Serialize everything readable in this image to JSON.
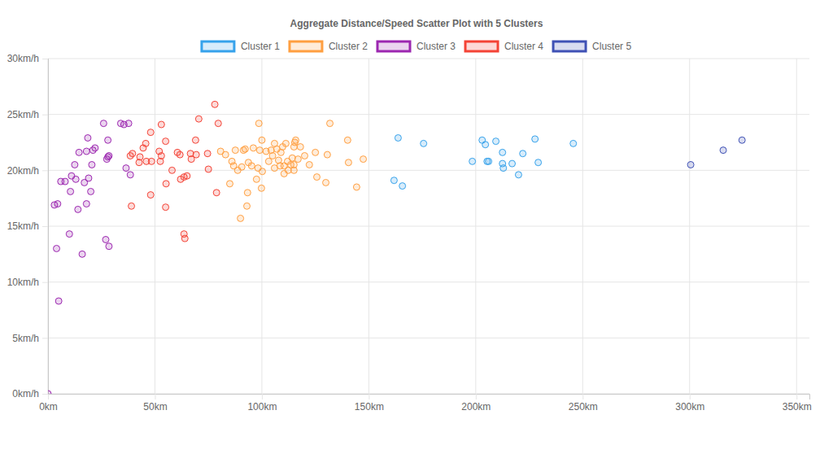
{
  "chart_data": {
    "type": "scatter",
    "title": "Aggregate Distance/Speed Scatter Plot with 5 Clusters",
    "grid": true,
    "legend": "top",
    "marker": "circle",
    "xlim": [
      0,
      356
    ],
    "ylim": [
      0,
      30
    ],
    "xticks": [
      {
        "value": 0,
        "label": "0km"
      },
      {
        "value": 50,
        "label": "50km"
      },
      {
        "value": 100,
        "label": "100km"
      },
      {
        "value": 150,
        "label": "150km"
      },
      {
        "value": 200,
        "label": "200km"
      },
      {
        "value": 250,
        "label": "250km"
      },
      {
        "value": 300,
        "label": "300km"
      },
      {
        "value": 350,
        "label": "350km"
      }
    ],
    "yticks": [
      {
        "value": 0,
        "label": "0km/h"
      },
      {
        "value": 5,
        "label": "5km/h"
      },
      {
        "value": 10,
        "label": "10km/h"
      },
      {
        "value": 15,
        "label": "15km/h"
      },
      {
        "value": 20,
        "label": "20km/h"
      },
      {
        "value": 25,
        "label": "25km/h"
      },
      {
        "value": 30,
        "label": "30km/h"
      }
    ],
    "series": [
      {
        "name": "Cluster 1",
        "color": "#36a2eb",
        "x": [
          163.7,
          161.8,
          165.7,
          175.6,
          198.4,
          203,
          204.5,
          205.3,
          206,
          209.4,
          212.5,
          212.5,
          212.9,
          217,
          220,
          222,
          227.7,
          229.2,
          245.6
        ],
        "values": [
          22.9,
          19.1,
          18.6,
          22.4,
          20.8,
          22.7,
          22.3,
          20.8,
          20.8,
          22.6,
          21.6,
          20.6,
          20.2,
          20.6,
          19.6,
          21.5,
          22.8,
          20.7,
          22.4
        ]
      },
      {
        "name": "Cluster 2",
        "color": "#ff9f40",
        "x": [
          80.7,
          83,
          85,
          86,
          86.8,
          87.6,
          88.7,
          90,
          90.6,
          91.4,
          92.2,
          93.3,
          93,
          93.7,
          95.2,
          96,
          97.5,
          98.2,
          98.6,
          99,
          99.8,
          100,
          100.2,
          102,
          103.2,
          104.3,
          105,
          105.9,
          105.9,
          107,
          107.8,
          108.5,
          108.9,
          109.7,
          110.4,
          110.4,
          111.2,
          112,
          112.3,
          113.5,
          114.2,
          115,
          115.4,
          115,
          115,
          115.8,
          116.9,
          118,
          120,
          122.2,
          125.7,
          125,
          129.9,
          130.6,
          131.8,
          140.1,
          140.5,
          144.3,
          147.4
        ],
        "values": [
          21.7,
          21.4,
          18.8,
          20.8,
          20.4,
          21.8,
          20,
          15.7,
          20.3,
          21.8,
          21.9,
          18,
          16.8,
          20.7,
          20.4,
          22,
          19.2,
          20.2,
          24.2,
          21.8,
          18.4,
          22.7,
          19.9,
          21.7,
          20.8,
          21.8,
          21.3,
          22.4,
          20.2,
          21.9,
          20.9,
          20.4,
          21.6,
          22.1,
          19.7,
          20.4,
          22.4,
          20.8,
          20,
          20.5,
          21.1,
          20.5,
          22.5,
          22.1,
          20,
          22.7,
          21,
          22.1,
          21.3,
          20.5,
          19.4,
          21.6,
          18.9,
          21.4,
          24.2,
          22.7,
          20.7,
          18.5,
          21
        ]
      },
      {
        "name": "Cluster 3",
        "color": "#9c27b0",
        "x": [
          0,
          5,
          4,
          10,
          3,
          4.5,
          6,
          8,
          11,
          13,
          10.5,
          14,
          16,
          18,
          17,
          19,
          20,
          20.5,
          12.5,
          14.5,
          18,
          21,
          22,
          18.6,
          26,
          27,
          28.5,
          28,
          27.5,
          28.5,
          28,
          34,
          35.5,
          37.7,
          36.5,
          38.5
        ],
        "values": [
          0,
          8.3,
          13,
          14.3,
          16.9,
          17,
          19,
          19,
          19.5,
          19.2,
          18.1,
          16.5,
          12.5,
          17,
          18.9,
          19.3,
          18.1,
          20.5,
          20.5,
          21.6,
          21.7,
          21.8,
          22,
          22.9,
          24.2,
          13.8,
          13.2,
          21.2,
          21,
          21.3,
          22.7,
          24.2,
          24.1,
          24.2,
          20.2,
          19.6
        ]
      },
      {
        "name": "Cluster 4",
        "color": "#f44336",
        "x": [
          38.5,
          39.5,
          39,
          42.6,
          43,
          44.5,
          45.7,
          46,
          48,
          48.4,
          48,
          52,
          53,
          52.5,
          53,
          55,
          55.2,
          55,
          58,
          60.5,
          61.7,
          62,
          63.6,
          65,
          63.6,
          64,
          66.6,
          67,
          69.3,
          69,
          70.5,
          74.6,
          75,
          78,
          78.8,
          79.6
        ],
        "values": [
          21.3,
          21.5,
          16.8,
          20.7,
          21.2,
          22,
          22.4,
          20.8,
          23.4,
          20.8,
          17.8,
          21.7,
          21.3,
          20.8,
          24.1,
          22.6,
          18.8,
          16.7,
          20,
          21.6,
          21.4,
          19.2,
          19.4,
          19.5,
          14.3,
          13.9,
          21.5,
          21,
          21.4,
          22.7,
          24.6,
          21.5,
          20.1,
          25.9,
          18,
          24.2
        ]
      },
      {
        "name": "Cluster 5",
        "color": "#3f51b5",
        "x": [
          300.5,
          315.7,
          324.5
        ],
        "values": [
          20.5,
          21.8,
          22.7
        ]
      }
    ]
  }
}
